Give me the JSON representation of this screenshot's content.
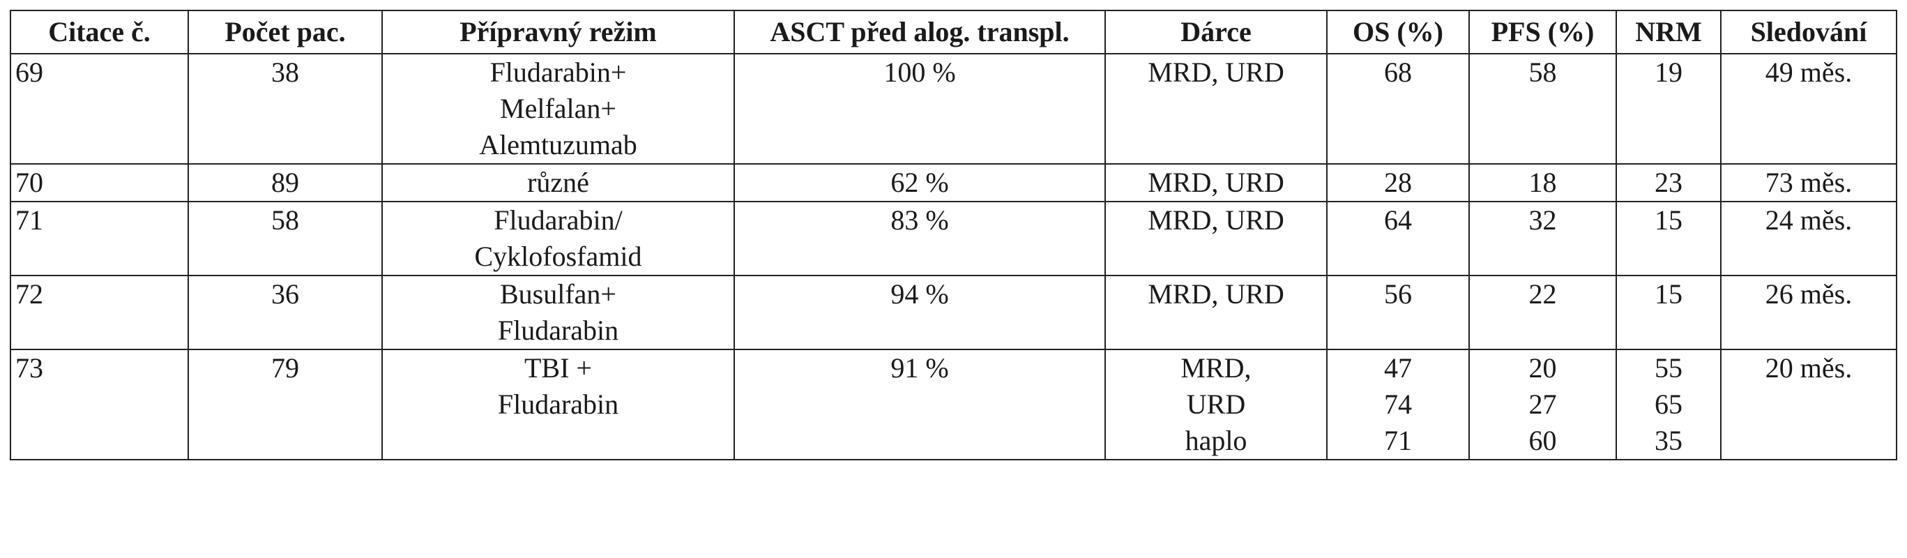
{
  "table": {
    "headers": [
      "Citace č.",
      "Počet pac.",
      "Přípravný režim",
      "ASCT před alog. transpl.",
      "Dárce",
      "OS (%)",
      "PFS (%)",
      "NRM",
      "Sledování"
    ],
    "rows": [
      {
        "citace": "69",
        "pocet": "38",
        "rezim": [
          "Fludarabin+",
          "Melfalan+",
          "Alemtuzumab"
        ],
        "asct": "100 %",
        "darce": [
          "MRD, URD"
        ],
        "os": [
          "68"
        ],
        "pfs": [
          "58"
        ],
        "nrm": [
          "19"
        ],
        "sledovani": "49 měs."
      },
      {
        "citace": "70",
        "pocet": "89",
        "rezim": [
          "různé"
        ],
        "asct": "62 %",
        "darce": [
          "MRD, URD"
        ],
        "os": [
          "28"
        ],
        "pfs": [
          "18"
        ],
        "nrm": [
          "23"
        ],
        "sledovani": "73 měs."
      },
      {
        "citace": "71",
        "pocet": "58",
        "rezim": [
          "Fludarabin/",
          "Cyklofosfamid"
        ],
        "asct": "83 %",
        "darce": [
          "MRD, URD"
        ],
        "os": [
          "64"
        ],
        "pfs": [
          "32"
        ],
        "nrm": [
          "15"
        ],
        "sledovani": "24 měs."
      },
      {
        "citace": "72",
        "pocet": "36",
        "rezim": [
          "Busulfan+",
          "Fludarabin"
        ],
        "asct": "94 %",
        "darce": [
          "MRD, URD"
        ],
        "os": [
          "56"
        ],
        "pfs": [
          "22"
        ],
        "nrm": [
          "15"
        ],
        "sledovani": "26 měs."
      },
      {
        "citace": "73",
        "pocet": "79",
        "rezim": [
          "TBI +",
          "Fludarabin"
        ],
        "asct": "91 %",
        "darce": [
          "MRD,",
          "URD",
          "haplo"
        ],
        "os": [
          "47",
          "74",
          "71"
        ],
        "pfs": [
          "20",
          "27",
          "60"
        ],
        "nrm": [
          "55",
          "65",
          "35"
        ],
        "sledovani": "20 měs."
      }
    ]
  }
}
